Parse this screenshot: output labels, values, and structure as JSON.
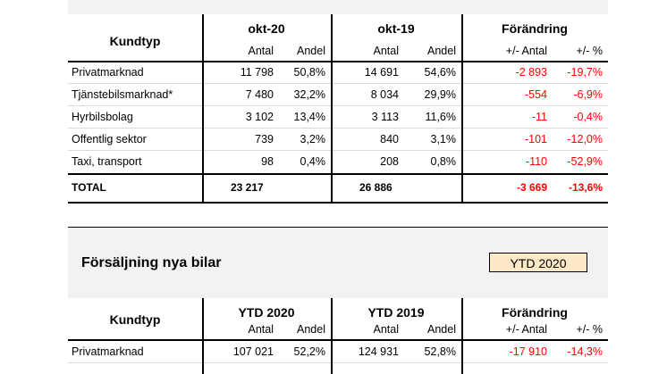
{
  "table1": {
    "header": {
      "kundtyp": "Kundtyp",
      "period1": "okt-20",
      "period2": "okt-19",
      "change": "Förändring",
      "antal": "Antal",
      "andel": "Andel",
      "change_antal": "+/- Antal",
      "change_pct": "+/- %"
    },
    "rows": [
      {
        "label": "Privatmarknad",
        "a1": "11 798",
        "s1": "50,8%",
        "a2": "14 691",
        "s2": "54,6%",
        "da": "-2 893",
        "dp": "-19,7%"
      },
      {
        "label": "Tjänstebilsmarknad*",
        "a1": "7 480",
        "s1": "32,2%",
        "a2": "8 034",
        "s2": "29,9%",
        "da": "-554",
        "dp": "-6,9%"
      },
      {
        "label": "Hyrbilsbolag",
        "a1": "3 102",
        "s1": "13,4%",
        "a2": "3 113",
        "s2": "11,6%",
        "da": "-11",
        "dp": "-0,4%"
      },
      {
        "label": "Offentlig sektor",
        "a1": "739",
        "s1": "3,2%",
        "a2": "840",
        "s2": "3,1%",
        "da": "-101",
        "dp": "-12,0%"
      },
      {
        "label": "Taxi, transport",
        "a1": "98",
        "s1": "0,4%",
        "a2": "208",
        "s2": "0,8%",
        "da": "-110",
        "dp": "-52,9%"
      }
    ],
    "total": {
      "label": "TOTAL",
      "a1": "23 217",
      "a2": "26 886",
      "da": "-3 669",
      "dp": "-13,6%"
    }
  },
  "section2": {
    "title": "Försäljning nya bilar",
    "badge": "YTD 2020"
  },
  "table2": {
    "header": {
      "kundtyp": "Kundtyp",
      "period1": "YTD 2020",
      "period2": "YTD 2019",
      "change": "Förändring",
      "antal": "Antal",
      "andel": "Andel",
      "change_antal": "+/- Antal",
      "change_pct": "+/- %"
    },
    "rows": [
      {
        "label": "Privatmarknad",
        "a1": "107 021",
        "s1": "52,2%",
        "a2": "124 931",
        "s2": "52,8%",
        "da": "-17 910",
        "dp": "-14,3%"
      }
    ]
  },
  "colors": {
    "negative": "#ff0000",
    "panel": "#f2f2f2",
    "badge": "#fde9c8"
  }
}
